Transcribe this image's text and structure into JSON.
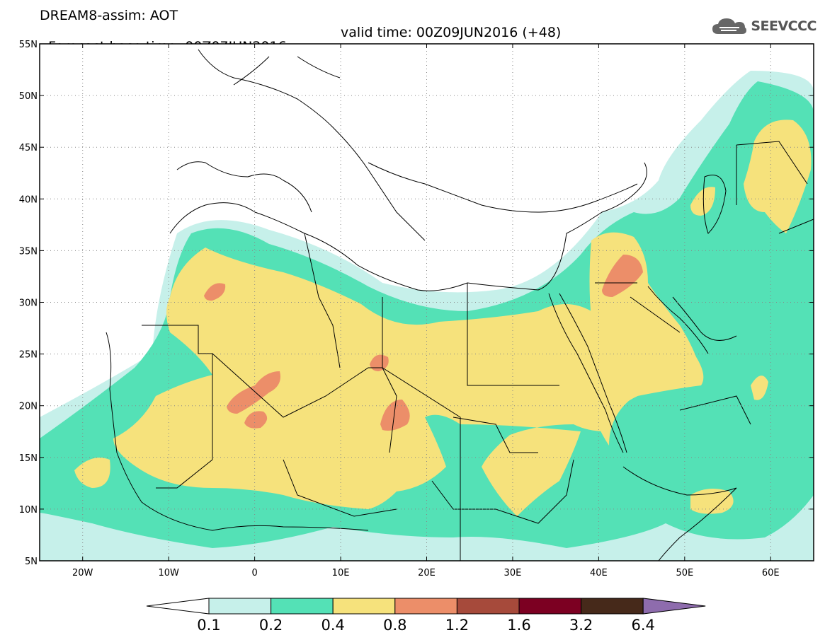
{
  "header": {
    "line1": "DREAM8-assim: AOT",
    "base_time": "Forecast base time: 00Z07JUN2016",
    "valid_time": "valid time: 00Z09JUN2016 (+48)",
    "logo_text": "SEEVCCC"
  },
  "map": {
    "lat_labels": [
      "55N",
      "50N",
      "45N",
      "40N",
      "35N",
      "30N",
      "25N",
      "20N",
      "15N",
      "10N",
      "5N"
    ],
    "lon_labels": [
      "20W",
      "10W",
      "0",
      "10E",
      "20E",
      "30E",
      "40E",
      "50E",
      "60E"
    ],
    "lon_range": [
      -25,
      65
    ],
    "lat_range": [
      5,
      55
    ]
  },
  "colorbar": {
    "labels": [
      "0.1",
      "0.2",
      "0.4",
      "0.8",
      "1.2",
      "1.6",
      "3.2",
      "6.4"
    ],
    "colors": [
      "#ffffff",
      "#c6f0ea",
      "#54e1b6",
      "#f6e27c",
      "#ec8e69",
      "#a64a3b",
      "#7c0022",
      "#46291a",
      "#8e6cad"
    ]
  }
}
